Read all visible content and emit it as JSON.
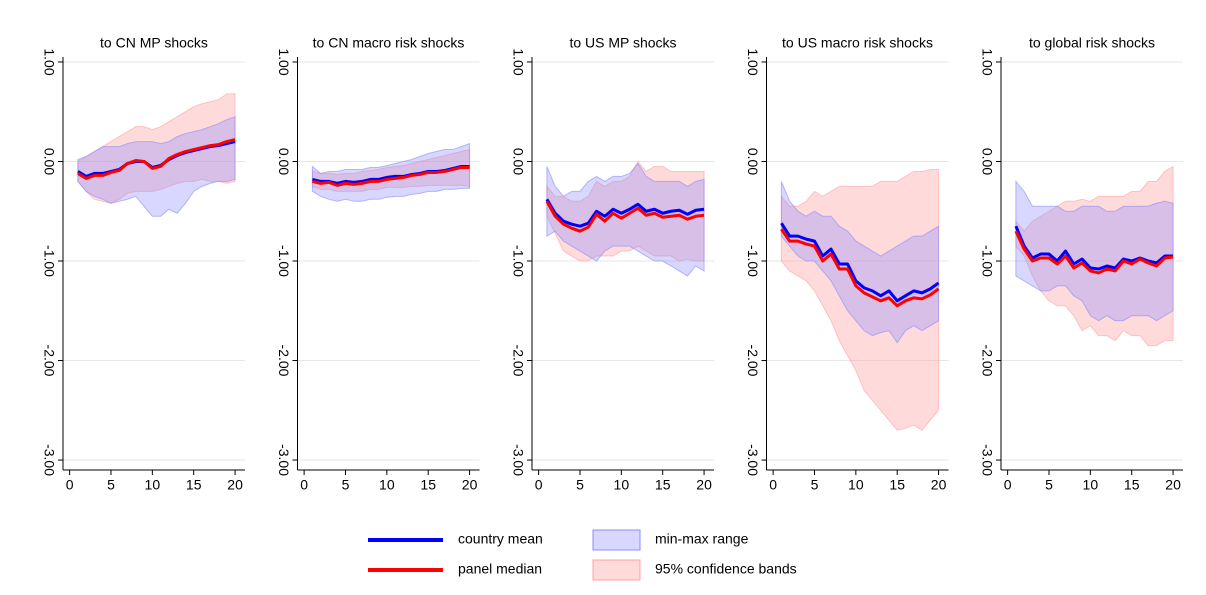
{
  "legend": {
    "lines": [
      {
        "name": "country mean",
        "color": "#0000ff"
      },
      {
        "name": "panel median",
        "color": "#ff0000"
      }
    ],
    "bands": [
      {
        "name": "min-max range",
        "color": "#8c8cff"
      },
      {
        "name": "95% confidence bands",
        "color": "#ffa3a3"
      }
    ]
  },
  "chart_data": [
    {
      "type": "line",
      "title": "to CN MP shocks",
      "x": [
        1,
        2,
        3,
        4,
        5,
        6,
        7,
        8,
        9,
        10,
        11,
        12,
        13,
        14,
        15,
        16,
        17,
        18,
        19,
        20
      ],
      "xlim": [
        -0.8,
        21.2
      ],
      "xticks": [
        0,
        5,
        10,
        15,
        20
      ],
      "ylim": [
        -3.1,
        1.05
      ],
      "grid": true,
      "yticks": [
        {
          "value": -3,
          "label": "-3.00"
        },
        {
          "value": -2,
          "label": "-2.00"
        },
        {
          "value": -1,
          "label": "-1.00"
        },
        {
          "value": 0,
          "label": "0.00"
        },
        {
          "value": 1,
          "label": "1.00"
        }
      ],
      "series": [
        {
          "values": [
            -0.1,
            -0.15,
            -0.12,
            -0.12,
            -0.1,
            -0.08,
            -0.02,
            0.0,
            0.0,
            -0.06,
            -0.04,
            0.02,
            0.06,
            0.09,
            0.11,
            0.13,
            0.15,
            0.16,
            0.18,
            0.2
          ]
        },
        {
          "values": [
            -0.12,
            -0.17,
            -0.14,
            -0.14,
            -0.11,
            -0.09,
            -0.02,
            0.01,
            0.0,
            -0.07,
            -0.05,
            0.03,
            0.07,
            0.1,
            0.12,
            0.14,
            0.16,
            0.17,
            0.2,
            0.22
          ]
        }
      ],
      "bands": [
        {
          "lower": [
            -0.2,
            -0.3,
            -0.35,
            -0.38,
            -0.42,
            -0.4,
            -0.38,
            -0.35,
            -0.45,
            -0.55,
            -0.55,
            -0.48,
            -0.52,
            -0.42,
            -0.3,
            -0.25,
            -0.22,
            -0.2,
            -0.2,
            -0.18
          ],
          "upper": [
            0.02,
            0.05,
            0.1,
            0.15,
            0.15,
            0.15,
            0.18,
            0.2,
            0.2,
            0.2,
            0.18,
            0.2,
            0.25,
            0.28,
            0.3,
            0.32,
            0.35,
            0.38,
            0.42,
            0.45
          ]
        },
        {
          "lower": [
            -0.2,
            -0.3,
            -0.38,
            -0.4,
            -0.42,
            -0.38,
            -0.32,
            -0.3,
            -0.3,
            -0.3,
            -0.28,
            -0.25,
            -0.22,
            -0.2,
            -0.2,
            -0.18,
            -0.2,
            -0.2,
            -0.22,
            -0.2
          ],
          "upper": [
            0.0,
            0.05,
            0.1,
            0.15,
            0.2,
            0.25,
            0.3,
            0.35,
            0.35,
            0.32,
            0.35,
            0.4,
            0.45,
            0.5,
            0.55,
            0.58,
            0.6,
            0.62,
            0.68,
            0.68
          ]
        }
      ]
    },
    {
      "type": "line",
      "title": "to CN macro risk shocks",
      "x": [
        1,
        2,
        3,
        4,
        5,
        6,
        7,
        8,
        9,
        10,
        11,
        12,
        13,
        14,
        15,
        16,
        17,
        18,
        19,
        20
      ],
      "xlim": [
        -0.8,
        21.2
      ],
      "xticks": [
        0,
        5,
        10,
        15,
        20
      ],
      "ylim": [
        -3.1,
        1.05
      ],
      "grid": true,
      "yticks": [
        {
          "value": -3,
          "label": "-3.00"
        },
        {
          "value": -2,
          "label": "-2.00"
        },
        {
          "value": -1,
          "label": "-1.00"
        },
        {
          "value": 0,
          "label": "0.00"
        },
        {
          "value": 1,
          "label": "1.00"
        }
      ],
      "series": [
        {
          "values": [
            -0.18,
            -0.2,
            -0.2,
            -0.22,
            -0.2,
            -0.21,
            -0.2,
            -0.18,
            -0.18,
            -0.16,
            -0.15,
            -0.15,
            -0.13,
            -0.12,
            -0.1,
            -0.1,
            -0.09,
            -0.07,
            -0.05,
            -0.05
          ]
        },
        {
          "values": [
            -0.2,
            -0.22,
            -0.21,
            -0.24,
            -0.22,
            -0.23,
            -0.22,
            -0.2,
            -0.2,
            -0.18,
            -0.17,
            -0.16,
            -0.14,
            -0.13,
            -0.11,
            -0.11,
            -0.1,
            -0.08,
            -0.06,
            -0.06
          ]
        }
      ],
      "bands": [
        {
          "lower": [
            -0.3,
            -0.35,
            -0.38,
            -0.4,
            -0.38,
            -0.4,
            -0.4,
            -0.38,
            -0.38,
            -0.36,
            -0.35,
            -0.35,
            -0.33,
            -0.32,
            -0.3,
            -0.3,
            -0.28,
            -0.28,
            -0.27,
            -0.27
          ],
          "upper": [
            -0.05,
            -0.12,
            -0.1,
            -0.1,
            -0.08,
            -0.08,
            -0.08,
            -0.06,
            -0.06,
            -0.04,
            -0.02,
            0.0,
            0.02,
            0.05,
            0.08,
            0.1,
            0.12,
            0.12,
            0.15,
            0.18
          ]
        },
        {
          "lower": [
            -0.25,
            -0.28,
            -0.28,
            -0.3,
            -0.3,
            -0.3,
            -0.3,
            -0.28,
            -0.28,
            -0.26,
            -0.26,
            -0.26,
            -0.25,
            -0.25,
            -0.24,
            -0.24,
            -0.24,
            -0.24,
            -0.24,
            -0.25
          ],
          "upper": [
            -0.1,
            -0.12,
            -0.12,
            -0.13,
            -0.12,
            -0.12,
            -0.1,
            -0.09,
            -0.08,
            -0.06,
            -0.05,
            -0.04,
            -0.02,
            0.0,
            0.02,
            0.04,
            0.06,
            0.08,
            0.1,
            0.12
          ]
        }
      ]
    },
    {
      "type": "line",
      "title": "to US MP shocks",
      "x": [
        1,
        2,
        3,
        4,
        5,
        6,
        7,
        8,
        9,
        10,
        11,
        12,
        13,
        14,
        15,
        16,
        17,
        18,
        19,
        20
      ],
      "xlim": [
        -0.8,
        21.2
      ],
      "xticks": [
        0,
        5,
        10,
        15,
        20
      ],
      "ylim": [
        -3.1,
        1.05
      ],
      "grid": true,
      "yticks": [
        {
          "value": -3,
          "label": "-3.00"
        },
        {
          "value": -2,
          "label": "-2.00"
        },
        {
          "value": -1,
          "label": "-1.00"
        },
        {
          "value": 0,
          "label": "0.00"
        },
        {
          "value": 1,
          "label": "1.00"
        }
      ],
      "series": [
        {
          "values": [
            -0.38,
            -0.52,
            -0.6,
            -0.63,
            -0.65,
            -0.62,
            -0.5,
            -0.55,
            -0.48,
            -0.52,
            -0.48,
            -0.43,
            -0.5,
            -0.48,
            -0.52,
            -0.5,
            -0.49,
            -0.53,
            -0.49,
            -0.48
          ]
        },
        {
          "values": [
            -0.4,
            -0.55,
            -0.63,
            -0.67,
            -0.7,
            -0.66,
            -0.53,
            -0.6,
            -0.52,
            -0.57,
            -0.52,
            -0.47,
            -0.54,
            -0.52,
            -0.56,
            -0.55,
            -0.54,
            -0.58,
            -0.55,
            -0.54
          ]
        }
      ],
      "bands": [
        {
          "lower": [
            -0.75,
            -0.7,
            -0.8,
            -0.85,
            -0.9,
            -0.95,
            -1.0,
            -0.9,
            -0.85,
            -0.85,
            -0.85,
            -0.9,
            -0.95,
            -1.0,
            -1.0,
            -1.05,
            -1.1,
            -1.15,
            -1.05,
            -1.1
          ],
          "upper": [
            -0.05,
            -0.25,
            -0.35,
            -0.3,
            -0.3,
            -0.2,
            -0.15,
            -0.2,
            -0.15,
            -0.15,
            -0.12,
            -0.02,
            -0.15,
            -0.2,
            -0.2,
            -0.2,
            -0.2,
            -0.25,
            -0.2,
            -0.18
          ]
        },
        {
          "lower": [
            -0.55,
            -0.72,
            -0.9,
            -0.95,
            -1.0,
            -1.0,
            -0.95,
            -0.95,
            -0.95,
            -0.9,
            -0.9,
            -0.85,
            -0.9,
            -0.95,
            -0.95,
            -0.95,
            -1.0,
            -0.98,
            -1.0,
            -1.0
          ],
          "upper": [
            -0.25,
            -0.35,
            -0.35,
            -0.4,
            -0.4,
            -0.35,
            -0.2,
            -0.25,
            -0.2,
            -0.2,
            -0.15,
            0.0,
            -0.1,
            -0.05,
            -0.05,
            -0.1,
            -0.1,
            -0.1,
            -0.1,
            -0.1
          ]
        }
      ]
    },
    {
      "type": "line",
      "title": "to US macro risk shocks",
      "x": [
        1,
        2,
        3,
        4,
        5,
        6,
        7,
        8,
        9,
        10,
        11,
        12,
        13,
        14,
        15,
        16,
        17,
        18,
        19,
        20
      ],
      "xlim": [
        -0.8,
        21.2
      ],
      "xticks": [
        0,
        5,
        10,
        15,
        20
      ],
      "ylim": [
        -3.1,
        1.05
      ],
      "grid": true,
      "yticks": [
        {
          "value": -3,
          "label": "-3.00"
        },
        {
          "value": -2,
          "label": "-2.00"
        },
        {
          "value": -1,
          "label": "-1.00"
        },
        {
          "value": 0,
          "label": "0.00"
        },
        {
          "value": 1,
          "label": "1.00"
        }
      ],
      "series": [
        {
          "values": [
            -0.62,
            -0.75,
            -0.75,
            -0.78,
            -0.8,
            -0.95,
            -0.88,
            -1.03,
            -1.03,
            -1.2,
            -1.27,
            -1.3,
            -1.35,
            -1.3,
            -1.4,
            -1.35,
            -1.3,
            -1.32,
            -1.28,
            -1.22
          ]
        },
        {
          "values": [
            -0.68,
            -0.8,
            -0.8,
            -0.83,
            -0.85,
            -1.0,
            -0.93,
            -1.08,
            -1.08,
            -1.25,
            -1.32,
            -1.36,
            -1.4,
            -1.37,
            -1.45,
            -1.4,
            -1.37,
            -1.38,
            -1.34,
            -1.28
          ]
        }
      ],
      "bands": [
        {
          "lower": [
            -0.75,
            -0.85,
            -0.95,
            -1.0,
            -1.0,
            -1.1,
            -1.2,
            -1.35,
            -1.5,
            -1.6,
            -1.7,
            -1.75,
            -1.72,
            -1.7,
            -1.82,
            -1.7,
            -1.65,
            -1.7,
            -1.65,
            -1.6
          ],
          "upper": [
            -0.2,
            -0.4,
            -0.5,
            -0.55,
            -0.5,
            -0.55,
            -0.55,
            -0.65,
            -0.7,
            -0.8,
            -0.85,
            -0.9,
            -0.95,
            -0.9,
            -0.85,
            -0.8,
            -0.75,
            -0.75,
            -0.7,
            -0.65
          ]
        },
        {
          "lower": [
            -1.0,
            -1.1,
            -1.15,
            -1.2,
            -1.3,
            -1.45,
            -1.6,
            -1.8,
            -1.95,
            -2.1,
            -2.3,
            -2.4,
            -2.5,
            -2.6,
            -2.7,
            -2.68,
            -2.65,
            -2.7,
            -2.6,
            -2.5
          ],
          "upper": [
            -0.35,
            -0.45,
            -0.45,
            -0.4,
            -0.3,
            -0.35,
            -0.3,
            -0.25,
            -0.25,
            -0.25,
            -0.25,
            -0.25,
            -0.2,
            -0.2,
            -0.2,
            -0.15,
            -0.1,
            -0.1,
            -0.08,
            -0.08
          ]
        }
      ]
    },
    {
      "type": "line",
      "title": "to global risk shocks",
      "x": [
        1,
        2,
        3,
        4,
        5,
        6,
        7,
        8,
        9,
        10,
        11,
        12,
        13,
        14,
        15,
        16,
        17,
        18,
        19,
        20
      ],
      "xlim": [
        -0.8,
        21.2
      ],
      "xticks": [
        0,
        5,
        10,
        15,
        20
      ],
      "ylim": [
        -3.1,
        1.05
      ],
      "grid": true,
      "yticks": [
        {
          "value": -3,
          "label": "-3.00"
        },
        {
          "value": -2,
          "label": "-2.00"
        },
        {
          "value": -1,
          "label": "-1.00"
        },
        {
          "value": 0,
          "label": "0.00"
        },
        {
          "value": 1,
          "label": "1.00"
        }
      ],
      "series": [
        {
          "values": [
            -0.65,
            -0.85,
            -0.97,
            -0.93,
            -0.93,
            -1.0,
            -0.9,
            -1.03,
            -0.98,
            -1.07,
            -1.08,
            -1.05,
            -1.07,
            -0.98,
            -1.0,
            -0.97,
            -1.0,
            -1.02,
            -0.95,
            -0.95
          ]
        },
        {
          "values": [
            -0.7,
            -0.88,
            -1.0,
            -0.97,
            -0.97,
            -1.03,
            -0.95,
            -1.07,
            -1.02,
            -1.1,
            -1.12,
            -1.08,
            -1.1,
            -1.0,
            -1.03,
            -0.98,
            -1.02,
            -1.05,
            -0.97,
            -0.96
          ]
        }
      ],
      "bands": [
        {
          "lower": [
            -1.15,
            -1.2,
            -1.25,
            -1.3,
            -1.3,
            -1.25,
            -1.25,
            -1.35,
            -1.4,
            -1.55,
            -1.6,
            -1.55,
            -1.6,
            -1.6,
            -1.55,
            -1.55,
            -1.55,
            -1.6,
            -1.55,
            -1.5
          ],
          "upper": [
            -0.2,
            -0.3,
            -0.45,
            -0.45,
            -0.45,
            -0.45,
            -0.5,
            -0.5,
            -0.45,
            -0.45,
            -0.45,
            -0.5,
            -0.5,
            -0.45,
            -0.45,
            -0.45,
            -0.45,
            -0.42,
            -0.4,
            -0.42
          ]
        },
        {
          "lower": [
            -0.85,
            -0.95,
            -1.15,
            -1.3,
            -1.4,
            -1.45,
            -1.45,
            -1.55,
            -1.7,
            -1.65,
            -1.75,
            -1.75,
            -1.8,
            -1.7,
            -1.75,
            -1.75,
            -1.85,
            -1.85,
            -1.8,
            -1.8
          ],
          "upper": [
            -0.6,
            -0.7,
            -0.6,
            -0.55,
            -0.5,
            -0.45,
            -0.4,
            -0.4,
            -0.38,
            -0.4,
            -0.35,
            -0.35,
            -0.35,
            -0.35,
            -0.3,
            -0.3,
            -0.2,
            -0.2,
            -0.1,
            -0.05
          ]
        }
      ]
    }
  ]
}
